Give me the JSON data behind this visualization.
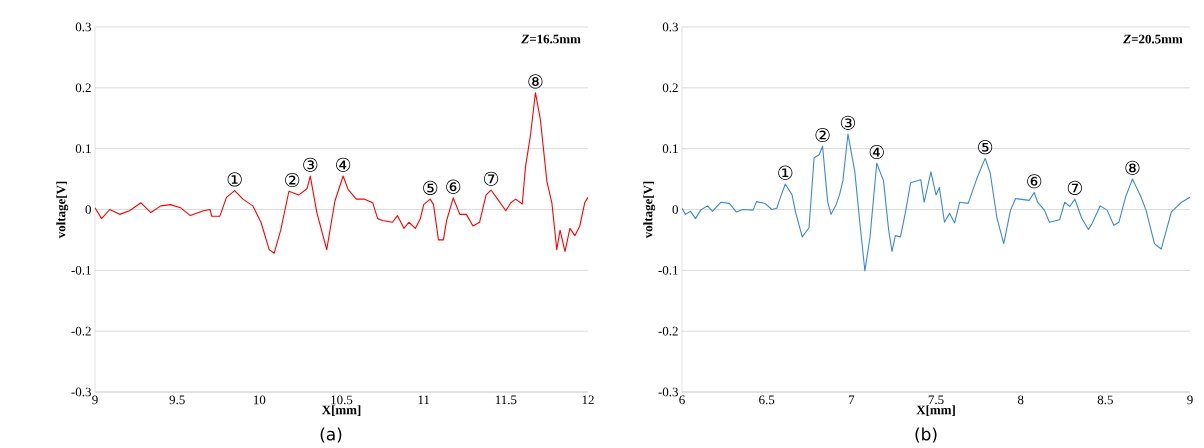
{
  "chart_data": [
    {
      "type": "line",
      "title": "(a)",
      "xlabel": "X[mm]",
      "ylabel": "voltage[V]",
      "xlim": [
        9,
        12
      ],
      "ylim": [
        -0.3,
        0.3
      ],
      "xticks": [
        9,
        9.5,
        10,
        10.5,
        11,
        11.5,
        12
      ],
      "yticks": [
        -0.3,
        -0.2,
        -0.1,
        0,
        0.1,
        0.2,
        0.3
      ],
      "grid": "y",
      "series": [
        {
          "color": "#ff0000",
          "x": [
            9.0,
            9.04,
            9.09,
            9.15,
            9.21,
            9.28,
            9.34,
            9.4,
            9.46,
            9.52,
            9.58,
            9.66,
            9.7,
            9.71,
            9.76,
            9.8,
            9.85,
            9.9,
            9.96,
            10.01,
            10.06,
            10.09,
            10.13,
            10.18,
            10.24,
            10.29,
            10.31,
            10.35,
            10.41,
            10.46,
            10.51,
            10.54,
            10.59,
            10.64,
            10.69,
            10.72,
            10.75,
            10.81,
            10.84,
            10.88,
            10.91,
            10.95,
            10.98,
            11.0,
            11.04,
            11.06,
            11.09,
            11.12,
            11.14,
            11.18,
            11.22,
            11.26,
            11.3,
            11.34,
            11.38,
            11.41,
            11.45,
            11.5,
            11.53,
            11.56,
            11.6,
            11.62,
            11.65,
            11.68,
            11.71,
            11.75,
            11.78,
            11.81,
            11.83,
            11.86,
            11.89,
            11.92,
            11.95,
            11.98,
            12.0
          ],
          "values": [
            0.003,
            -0.015,
            0,
            -0.008,
            -0.002,
            0.011,
            -0.005,
            0.006,
            0.008,
            0.003,
            -0.01,
            -0.002,
            0,
            -0.011,
            -0.011,
            0.02,
            0.031,
            0.017,
            0.006,
            -0.021,
            -0.066,
            -0.072,
            -0.034,
            0.03,
            0.024,
            0.034,
            0.055,
            -0.005,
            -0.066,
            0.014,
            0.055,
            0.033,
            0.017,
            0.017,
            0.011,
            -0.015,
            -0.018,
            -0.021,
            -0.01,
            -0.031,
            -0.021,
            -0.031,
            -0.015,
            0.008,
            0.017,
            0.008,
            -0.05,
            -0.05,
            -0.018,
            0.019,
            -0.008,
            -0.008,
            -0.027,
            -0.021,
            0.024,
            0.032,
            0.017,
            -0.002,
            0.011,
            0.017,
            0.009,
            0.071,
            0.122,
            0.192,
            0.148,
            0.046,
            0.011,
            -0.066,
            -0.034,
            -0.069,
            -0.031,
            -0.043,
            -0.027,
            0.011,
            0.02
          ]
        }
      ],
      "annotations": [
        "*Z*=16.5mm",
        {
          "text": "①",
          "x": 9.85,
          "y": 0.031
        },
        {
          "text": "②",
          "x": 10.2,
          "y": 0.03
        },
        {
          "text": "③",
          "x": 10.31,
          "y": 0.055
        },
        {
          "text": "④",
          "x": 10.51,
          "y": 0.055
        },
        {
          "text": "⑤",
          "x": 11.04,
          "y": 0.017
        },
        {
          "text": "⑥",
          "x": 11.18,
          "y": 0.019
        },
        {
          "text": "⑦",
          "x": 11.41,
          "y": 0.032
        },
        {
          "text": "⑧",
          "x": 11.68,
          "y": 0.192
        }
      ]
    },
    {
      "type": "line",
      "title": "(b)",
      "xlabel": "X[mm]",
      "ylabel": "voltage[V]",
      "xlim": [
        6,
        9
      ],
      "ylim": [
        -0.3,
        0.3
      ],
      "xticks": [
        6,
        6.5,
        7,
        7.5,
        8,
        8.5,
        9
      ],
      "yticks": [
        -0.3,
        -0.2,
        -0.1,
        0,
        0.1,
        0.2,
        0.3
      ],
      "grid": "y",
      "series": [
        {
          "color": "#3a8ad2",
          "x": [
            6.0,
            6.02,
            6.05,
            6.08,
            6.11,
            6.15,
            6.18,
            6.23,
            6.28,
            6.32,
            6.36,
            6.42,
            6.44,
            6.49,
            6.53,
            6.56,
            6.58,
            6.61,
            6.65,
            6.67,
            6.71,
            6.75,
            6.78,
            6.81,
            6.83,
            6.86,
            6.88,
            6.91,
            6.93,
            6.95,
            6.98,
            7.02,
            7.05,
            7.08,
            7.11,
            7.15,
            7.19,
            7.22,
            7.24,
            7.26,
            7.29,
            7.32,
            7.35,
            7.41,
            7.43,
            7.47,
            7.5,
            7.52,
            7.55,
            7.58,
            7.61,
            7.64,
            7.69,
            7.74,
            7.79,
            7.82,
            7.86,
            7.9,
            7.94,
            7.97,
            8.05,
            8.08,
            8.1,
            8.14,
            8.17,
            8.23,
            8.26,
            8.29,
            8.32,
            8.36,
            8.4,
            8.42,
            8.47,
            8.51,
            8.55,
            8.58,
            8.62,
            8.66,
            8.71,
            8.74,
            8.79,
            8.83,
            8.89,
            8.95,
            9.0
          ],
          "values": [
            0.002,
            -0.008,
            -0.003,
            -0.015,
            -0.001,
            0.006,
            -0.003,
            0.012,
            0.01,
            -0.004,
            0,
            -0.001,
            0.013,
            0.01,
            0,
            0.002,
            0.019,
            0.042,
            0.024,
            -0.004,
            -0.045,
            -0.03,
            0.085,
            0.09,
            0.104,
            0.013,
            -0.008,
            0.008,
            0.024,
            0.047,
            0.124,
            0.063,
            -0.021,
            -0.101,
            -0.046,
            0.076,
            0.047,
            -0.033,
            -0.069,
            -0.043,
            -0.045,
            -0.004,
            0.044,
            0.049,
            0.012,
            0.062,
            0.024,
            0.036,
            -0.021,
            -0.006,
            -0.022,
            0.012,
            0.01,
            0.05,
            0.084,
            0.06,
            -0.014,
            -0.056,
            -0.001,
            0.018,
            0.015,
            0.028,
            0.012,
            -0.001,
            -0.021,
            -0.017,
            0.012,
            0.005,
            0.017,
            -0.014,
            -0.033,
            -0.024,
            0.006,
            -0.001,
            -0.026,
            -0.021,
            0.021,
            0.05,
            0.021,
            -0.001,
            -0.056,
            -0.065,
            -0.004,
            0.012,
            0.02
          ]
        }
      ],
      "annotations": [
        "*Z*=20.5mm",
        {
          "text": "①",
          "x": 6.61,
          "y": 0.042
        },
        {
          "text": "②",
          "x": 6.83,
          "y": 0.104
        },
        {
          "text": "③",
          "x": 6.98,
          "y": 0.124
        },
        {
          "text": "④",
          "x": 7.15,
          "y": 0.076
        },
        {
          "text": "⑤",
          "x": 7.79,
          "y": 0.084
        },
        {
          "text": "⑥",
          "x": 8.08,
          "y": 0.028
        },
        {
          "text": "⑦",
          "x": 8.32,
          "y": 0.017
        },
        {
          "text": "⑧",
          "x": 8.66,
          "y": 0.05
        }
      ]
    }
  ]
}
